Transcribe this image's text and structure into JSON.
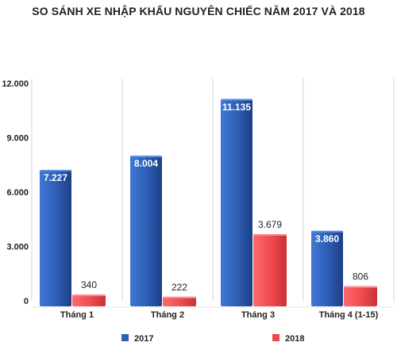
{
  "chart_data": {
    "type": "bar",
    "title": "SO SÁNH XE NHẬP KHẨU NGUYÊN CHIẾC NĂM 2017 VÀ 2018",
    "categories": [
      "Tháng 1",
      "Tháng 2",
      "Tháng 3",
      "Tháng 4 (1-15)"
    ],
    "series": [
      {
        "name": "2017",
        "color": "#2e5fb8",
        "values": [
          7227,
          8004,
          11135,
          3860
        ],
        "labels": [
          "7.227",
          "8.004",
          "11.135",
          "3.860"
        ]
      },
      {
        "name": "2018",
        "color": "#f04a4e",
        "values": [
          340,
          222,
          3679,
          806
        ],
        "labels": [
          "340",
          "222",
          "3.679",
          "806"
        ]
      }
    ],
    "ylim": [
      0,
      12000
    ],
    "yticks": [
      0,
      3000,
      6000,
      9000,
      12000
    ],
    "ytick_labels": [
      "0",
      "3.000",
      "6.000",
      "9.000",
      "12.000"
    ],
    "grid": "vertical",
    "legend": "bottom"
  }
}
